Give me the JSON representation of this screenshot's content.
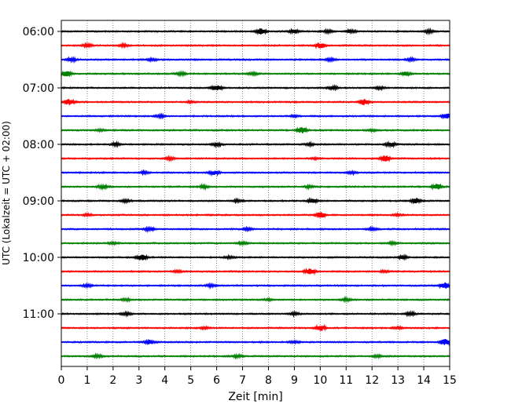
{
  "chart_data": {
    "type": "line",
    "title": "",
    "xlabel": "Zeit  [min]",
    "ylabel": "UTC (Lokalzeit = UTC + 02:00)",
    "xlim": [
      0,
      15
    ],
    "x_ticks": [
      0,
      1,
      2,
      3,
      4,
      5,
      6,
      7,
      8,
      9,
      10,
      11,
      12,
      13,
      14,
      15
    ],
    "x_grid": true,
    "y_ticks": [
      {
        "label": "06:00",
        "trace": 0
      },
      {
        "label": "07:00",
        "trace": 4
      },
      {
        "label": "08:00",
        "trace": 8
      },
      {
        "label": "09:00",
        "trace": 12
      },
      {
        "label": "10:00",
        "trace": 16
      },
      {
        "label": "11:00",
        "trace": 20
      }
    ],
    "trace_colors": [
      "#000000",
      "#ff0000",
      "#0000ff",
      "#008000"
    ],
    "traces": [
      {
        "start": "06:00",
        "events": [
          [
            7.7,
            1.0
          ],
          [
            9.0,
            0.6
          ],
          [
            10.3,
            0.5
          ],
          [
            11.2,
            0.6
          ],
          [
            14.2,
            0.5
          ]
        ]
      },
      {
        "start": "06:15",
        "events": [
          [
            1.0,
            0.5
          ],
          [
            10.0,
            1.0
          ],
          [
            2.4,
            0.4
          ]
        ]
      },
      {
        "start": "06:30",
        "events": [
          [
            0.4,
            0.5
          ],
          [
            3.5,
            0.4
          ],
          [
            10.4,
            0.4
          ],
          [
            13.5,
            0.4
          ]
        ]
      },
      {
        "start": "06:45",
        "events": [
          [
            0.2,
            0.9
          ],
          [
            4.6,
            0.5
          ],
          [
            7.4,
            0.4
          ],
          [
            13.3,
            0.6
          ]
        ]
      },
      {
        "start": "07:00",
        "events": [
          [
            6.0,
            1.0
          ],
          [
            10.5,
            0.5
          ],
          [
            12.3,
            0.4
          ]
        ]
      },
      {
        "start": "07:15",
        "events": [
          [
            0.3,
            1.0
          ],
          [
            11.7,
            1.0
          ],
          [
            5.0,
            0.3
          ]
        ]
      },
      {
        "start": "07:30",
        "events": [
          [
            3.8,
            0.5
          ],
          [
            14.9,
            0.9
          ],
          [
            9.0,
            0.3
          ]
        ]
      },
      {
        "start": "07:45",
        "events": [
          [
            9.3,
            1.0
          ],
          [
            1.5,
            0.3
          ],
          [
            12.0,
            0.3
          ]
        ]
      },
      {
        "start": "08:00",
        "events": [
          [
            12.7,
            0.8
          ],
          [
            2.1,
            0.5
          ],
          [
            6.0,
            0.5
          ],
          [
            9.6,
            0.4
          ]
        ]
      },
      {
        "start": "08:15",
        "events": [
          [
            12.5,
            1.0
          ],
          [
            4.2,
            0.4
          ],
          [
            9.8,
            0.3
          ]
        ]
      },
      {
        "start": "08:30",
        "events": [
          [
            5.9,
            0.7
          ],
          [
            3.2,
            0.4
          ],
          [
            11.2,
            0.4
          ]
        ]
      },
      {
        "start": "08:45",
        "events": [
          [
            1.6,
            0.6
          ],
          [
            14.5,
            1.0
          ],
          [
            5.5,
            0.5
          ],
          [
            9.6,
            0.4
          ]
        ]
      },
      {
        "start": "09:00",
        "events": [
          [
            9.7,
            0.8
          ],
          [
            13.7,
            0.9
          ],
          [
            2.5,
            0.4
          ],
          [
            6.8,
            0.4
          ]
        ]
      },
      {
        "start": "09:15",
        "events": [
          [
            10.0,
            1.0
          ],
          [
            1.0,
            0.3
          ],
          [
            13.0,
            0.3
          ]
        ]
      },
      {
        "start": "09:30",
        "events": [
          [
            3.4,
            0.6
          ],
          [
            7.2,
            0.4
          ],
          [
            12.0,
            0.4
          ]
        ]
      },
      {
        "start": "09:45",
        "events": [
          [
            7.0,
            0.5
          ],
          [
            2.0,
            0.4
          ],
          [
            12.8,
            0.4
          ]
        ]
      },
      {
        "start": "10:00",
        "events": [
          [
            3.1,
            1.0
          ],
          [
            6.5,
            0.4
          ],
          [
            13.2,
            0.6
          ]
        ]
      },
      {
        "start": "10:15",
        "events": [
          [
            9.6,
            1.0
          ],
          [
            4.5,
            0.3
          ],
          [
            12.5,
            0.3
          ]
        ]
      },
      {
        "start": "10:30",
        "events": [
          [
            5.8,
            0.5
          ],
          [
            14.8,
            1.0
          ],
          [
            1.0,
            0.4
          ]
        ]
      },
      {
        "start": "10:45",
        "events": [
          [
            11.0,
            0.5
          ],
          [
            2.5,
            0.3
          ],
          [
            8.0,
            0.3
          ]
        ]
      },
      {
        "start": "11:00",
        "events": [
          [
            13.5,
            0.6
          ],
          [
            2.5,
            0.4
          ],
          [
            9.0,
            0.4
          ]
        ]
      },
      {
        "start": "11:15",
        "events": [
          [
            10.0,
            1.0
          ],
          [
            5.5,
            0.3
          ],
          [
            13.0,
            0.3
          ]
        ]
      },
      {
        "start": "11:30",
        "events": [
          [
            3.4,
            0.7
          ],
          [
            14.8,
            1.0
          ],
          [
            9.0,
            0.3
          ]
        ]
      },
      {
        "start": "11:45",
        "events": [
          [
            1.4,
            0.5
          ],
          [
            6.8,
            0.4
          ],
          [
            12.2,
            0.4
          ]
        ]
      }
    ],
    "noise_level": 0.35,
    "legend": "none"
  }
}
